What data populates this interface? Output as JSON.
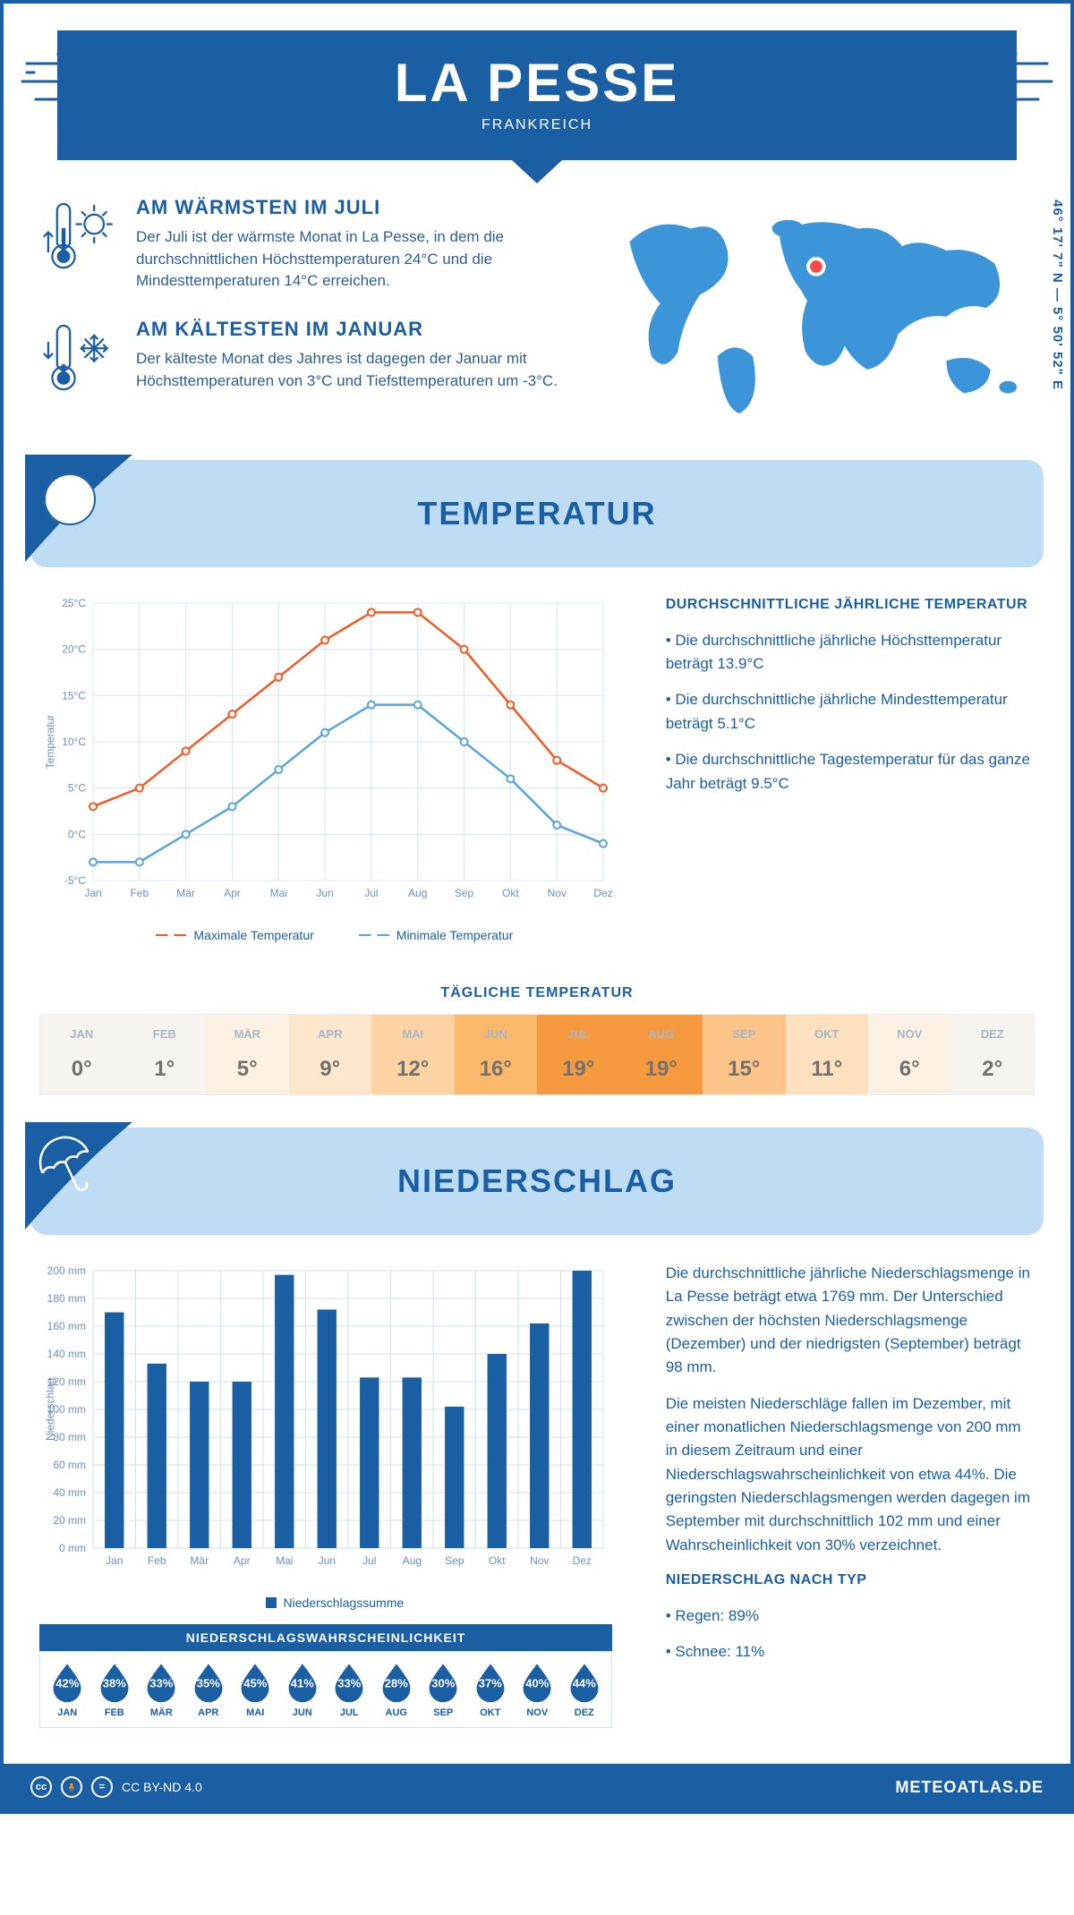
{
  "header": {
    "title": "LA PESSE",
    "subtitle": "FRANKREICH"
  },
  "coords": "46° 17' 7\" N — 5° 50' 52\" E",
  "facts": {
    "warm": {
      "title": "AM WÄRMSTEN IM JULI",
      "text": "Der Juli ist der wärmste Monat in La Pesse, in dem die durchschnittlichen Höchsttemperaturen 24°C und die Mindesttemperaturen 14°C erreichen."
    },
    "cold": {
      "title": "AM KÄLTESTEN IM JANUAR",
      "text": "Der kälteste Monat des Jahres ist dagegen der Januar mit Höchsttemperaturen von 3°C und Tiefsttemperaturen um -3°C."
    }
  },
  "sections": {
    "temperature": "TEMPERATUR",
    "precipitation": "NIEDERSCHLAG"
  },
  "temp_chart": {
    "months": [
      "Jan",
      "Feb",
      "Mär",
      "Apr",
      "Mai",
      "Jun",
      "Jul",
      "Aug",
      "Sep",
      "Okt",
      "Nov",
      "Dez"
    ],
    "max_values": [
      3,
      5,
      9,
      13,
      17,
      21,
      24,
      24,
      20,
      14,
      8,
      5
    ],
    "min_values": [
      -3,
      -3,
      0,
      3,
      7,
      11,
      14,
      14,
      10,
      6,
      1,
      -1
    ],
    "ylabel": "Temperatur",
    "ymin": -5,
    "ymax": 25,
    "ystep": 5,
    "ytick_labels": [
      "-5°C",
      "0°C",
      "5°C",
      "10°C",
      "15°C",
      "20°C",
      "25°C"
    ],
    "max_color": "#f15a22",
    "min_color": "#5aa4de",
    "grid_color": "#d7e4f0",
    "legend_max": "Maximale Temperatur",
    "legend_min": "Minimale Temperatur"
  },
  "temp_side": {
    "title": "DURCHSCHNITTLICHE JÄHRLICHE TEMPERATUR",
    "b1": "• Die durchschnittliche jährliche Höchsttemperatur beträgt 13.9°C",
    "b2": "• Die durchschnittliche jährliche Mindesttemperatur beträgt 5.1°C",
    "b3": "• Die durchschnittliche Tagestemperatur für das ganze Jahr beträgt 9.5°C"
  },
  "daily_temp": {
    "title": "TÄGLICHE TEMPERATUR",
    "months": [
      "JAN",
      "FEB",
      "MÄR",
      "APR",
      "MAI",
      "JUN",
      "JUL",
      "AUG",
      "SEP",
      "OKT",
      "NOV",
      "DEZ"
    ],
    "values_label": [
      "0°",
      "1°",
      "5°",
      "9°",
      "12°",
      "16°",
      "19°",
      "19°",
      "15°",
      "11°",
      "6°",
      "2°"
    ],
    "values_num": [
      0,
      1,
      5,
      9,
      12,
      16,
      19,
      19,
      15,
      11,
      6,
      2
    ],
    "heat_colors": [
      "#f7f3ee",
      "#f7f3ee",
      "#fdf1e3",
      "#fde6cc",
      "#fdd3a3",
      "#fbb76a",
      "#f79a3f",
      "#f79a3f",
      "#fcc488",
      "#fde0be",
      "#fdf1e3",
      "#f7f3ee"
    ]
  },
  "precip_chart": {
    "months": [
      "Jan",
      "Feb",
      "Mär",
      "Apr",
      "Mai",
      "Jun",
      "Jul",
      "Aug",
      "Sep",
      "Okt",
      "Nov",
      "Dez"
    ],
    "values": [
      170,
      133,
      120,
      120,
      197,
      172,
      123,
      123,
      102,
      140,
      162,
      200
    ],
    "ylabel": "Niederschlag",
    "ymin": 0,
    "ymax": 200,
    "ystep": 20,
    "bar_color": "#1a5ea3",
    "grid_color": "#cfe0ef",
    "legend": "Niederschlagssumme"
  },
  "precip_side": {
    "p1": "Die durchschnittliche jährliche Niederschlagsmenge in La Pesse beträgt etwa 1769 mm. Der Unterschied zwischen der höchsten Niederschlagsmenge (Dezember) und der niedrigsten (September) beträgt 98 mm.",
    "p2": "Die meisten Niederschläge fallen im Dezember, mit einer monatlichen Niederschlagsmenge von 200 mm in diesem Zeitraum und einer Niederschlagswahrscheinlichkeit von etwa 44%. Die geringsten Niederschlagsmengen werden dagegen im September mit durchschnittlich 102 mm und einer Wahrscheinlichkeit von 30% verzeichnet.",
    "type_title": "NIEDERSCHLAG NACH TYP",
    "rain": "• Regen: 89%",
    "snow": "• Schnee: 11%"
  },
  "prob": {
    "title": "NIEDERSCHLAGSWAHRSCHEINLICHKEIT",
    "months": [
      "JAN",
      "FEB",
      "MÄR",
      "APR",
      "MAI",
      "JUN",
      "JUL",
      "AUG",
      "SEP",
      "OKT",
      "NOV",
      "DEZ"
    ],
    "values": [
      "42%",
      "38%",
      "33%",
      "35%",
      "45%",
      "41%",
      "33%",
      "28%",
      "30%",
      "37%",
      "40%",
      "44%"
    ],
    "drop_color": "#1a5ea3"
  },
  "footer": {
    "license": "CC BY-ND 4.0",
    "brand": "METEOATLAS.DE"
  },
  "colors": {
    "primary": "#1a5ea3",
    "banner": "#bedcf4",
    "map_fill": "#3c94d9",
    "marker": "#fe4747"
  }
}
